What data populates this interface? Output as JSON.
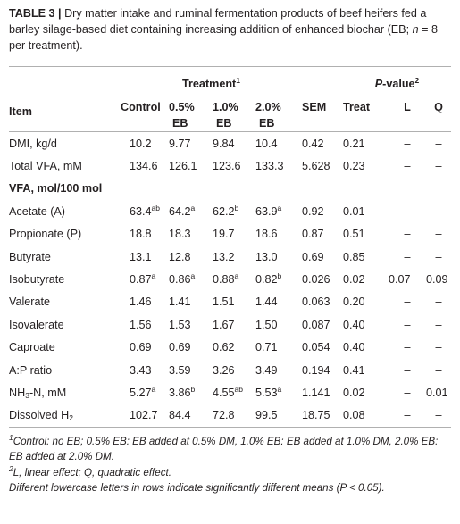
{
  "caption": {
    "label": "TABLE 3 |",
    "text": " Dry matter intake and ruminal fermentation products of beef heifers fed a barley silage-based diet containing increasing addition of enhanced biochar (EB; ",
    "n_symbol": "n",
    "n_text": " = 8 per treatment)."
  },
  "header": {
    "item": "Item",
    "treatment_group": "Treatment",
    "treatment_sup": "1",
    "pvalue_group_italic": "P",
    "pvalue_group_rest": "-value",
    "pvalue_sup": "2",
    "columns": {
      "control": "Control",
      "eb05_a": "0.5%",
      "eb05_b": "EB",
      "eb10_a": "1.0%",
      "eb10_b": "EB",
      "eb20_a": "2.0%",
      "eb20_b": "EB",
      "sem": "SEM",
      "treat": "Treat",
      "l": "L",
      "q": "Q"
    }
  },
  "rows": {
    "dmi": {
      "item": "DMI, kg/d",
      "control": "10.2",
      "eb05": "9.77",
      "eb10": "9.84",
      "eb20": "10.4",
      "sem": "0.42",
      "treat": "0.21",
      "l": "–",
      "q": "–"
    },
    "tvfa": {
      "item": "Total VFA, mM",
      "control": "134.6",
      "eb05": "126.1",
      "eb10": "123.6",
      "eb20": "133.3",
      "sem": "5.628",
      "treat": "0.23",
      "l": "–",
      "q": "–"
    },
    "section_vfa": "VFA, mol/100 mol",
    "acetate": {
      "item": "Acetate (A)",
      "control": "63.4",
      "control_sup": "ab",
      "eb05": "64.2",
      "eb05_sup": "a",
      "eb10": "62.2",
      "eb10_sup": "b",
      "eb20": "63.9",
      "eb20_sup": "a",
      "sem": "0.92",
      "treat": "0.01",
      "l": "–",
      "q": "–"
    },
    "propionate": {
      "item": "Propionate (P)",
      "control": "18.8",
      "eb05": "18.3",
      "eb10": "19.7",
      "eb20": "18.6",
      "sem": "0.87",
      "treat": "0.51",
      "l": "–",
      "q": "–"
    },
    "butyrate": {
      "item": "Butyrate",
      "control": "13.1",
      "eb05": "12.8",
      "eb10": "13.2",
      "eb20": "13.0",
      "sem": "0.69",
      "treat": "0.85",
      "l": "–",
      "q": "–"
    },
    "isobutyrate": {
      "item": "Isobutyrate",
      "control": "0.87",
      "control_sup": "a",
      "eb05": "0.86",
      "eb05_sup": "a",
      "eb10": "0.88",
      "eb10_sup": "a",
      "eb20": "0.82",
      "eb20_sup": "b",
      "sem": "0.026",
      "treat": "0.02",
      "l": "0.07",
      "q": "0.09"
    },
    "valerate": {
      "item": "Valerate",
      "control": "1.46",
      "eb05": "1.41",
      "eb10": "1.51",
      "eb20": "1.44",
      "sem": "0.063",
      "treat": "0.20",
      "l": "–",
      "q": "–"
    },
    "isovalerate": {
      "item": "Isovalerate",
      "control": "1.56",
      "eb05": "1.53",
      "eb10": "1.67",
      "eb20": "1.50",
      "sem": "0.087",
      "treat": "0.40",
      "l": "–",
      "q": "–"
    },
    "caproate": {
      "item": "Caproate",
      "control": "0.69",
      "eb05": "0.69",
      "eb10": "0.62",
      "eb20": "0.71",
      "sem": "0.054",
      "treat": "0.40",
      "l": "–",
      "q": "–"
    },
    "ap_ratio": {
      "item": "A:P ratio",
      "control": "3.43",
      "eb05": "3.59",
      "eb10": "3.26",
      "eb20": "3.49",
      "sem": "0.194",
      "treat": "0.41",
      "l": "–",
      "q": "–"
    },
    "nh3n": {
      "item_a": "NH",
      "item_sub": "3",
      "item_b": "-N, mM",
      "control": "5.27",
      "control_sup": "a",
      "eb05": "3.86",
      "eb05_sup": "b",
      "eb10": "4.55",
      "eb10_sup": "ab",
      "eb20": "5.53",
      "eb20_sup": "a",
      "sem": "1.141",
      "treat": "0.02",
      "l": "–",
      "q": "0.01"
    },
    "h2": {
      "item_a": "Dissolved H",
      "item_sub": "2",
      "control": "102.7",
      "eb05": "84.4",
      "eb10": "72.8",
      "eb20": "99.5",
      "sem": "18.75",
      "treat": "0.08",
      "l": "–",
      "q": "–"
    }
  },
  "footnotes": {
    "fn1_sup": "1",
    "fn1": "Control: no EB; 0.5% EB: EB added at 0.5% DM, 1.0% EB: EB added at 1.0% DM, 2.0% EB: EB added at 2.0% DM.",
    "fn2_sup": "2",
    "fn2": "L, linear effect; Q, quadratic effect.",
    "fn3": "Different lowercase letters in rows indicate significantly different means (P < 0.05)."
  }
}
